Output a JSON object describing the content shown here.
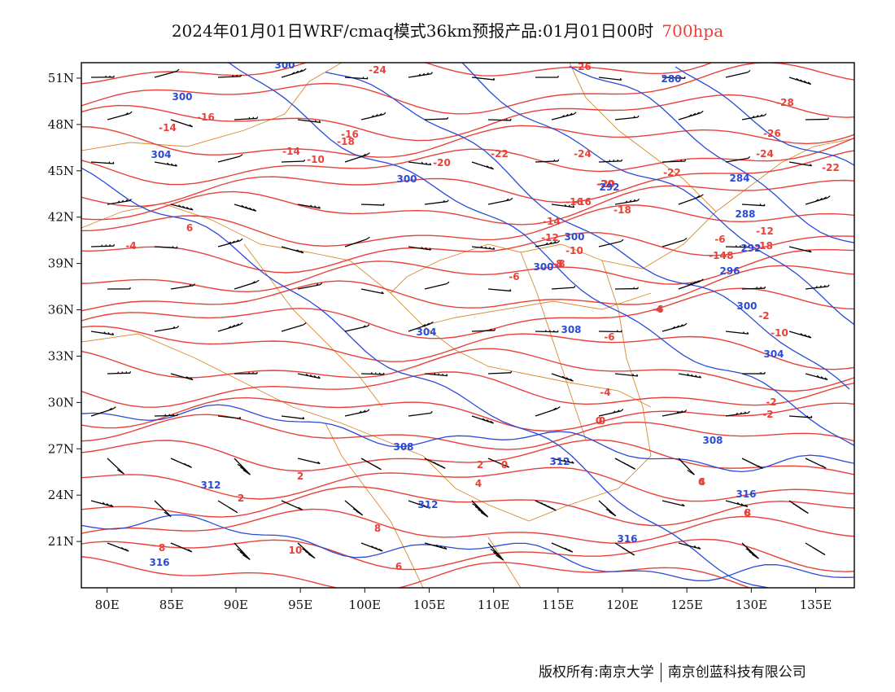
{
  "header": {
    "title": "2024年01月01日WRF/cmaq模式36km预报产品:01月01日00时",
    "level": "700hpa"
  },
  "map": {
    "lon_range": [
      78,
      138
    ],
    "lat_range": [
      18,
      52
    ],
    "x_ticks": [
      "80E",
      "85E",
      "90E",
      "95E",
      "100E",
      "105E",
      "110E",
      "115E",
      "120E",
      "125E",
      "130E",
      "135E"
    ],
    "y_ticks": [
      "51N",
      "48N",
      "45N",
      "42N",
      "39N",
      "36N",
      "33N",
      "30N",
      "27N",
      "24N",
      "21N"
    ],
    "temperature_labels": [
      "-24",
      "-26",
      "-28",
      "-26",
      "-24",
      "-22",
      "-16",
      "-14",
      "-16",
      "-18",
      "-16",
      "-14",
      "-10",
      "-20",
      "-22",
      "-24",
      "-22",
      "-20",
      "-16",
      "-18",
      "-14",
      "-12",
      "-10",
      "-8",
      "-6",
      "-4",
      "-6",
      "-4",
      "-2",
      "0",
      "-2",
      "0",
      "2",
      "2",
      "4",
      "6",
      "8",
      "10",
      "8",
      "6",
      "4",
      "6",
      "-4",
      "-2",
      "-10",
      "-8",
      "-6",
      "-18",
      "-14",
      "-12",
      "-20",
      "-6",
      "-8",
      "0",
      "2",
      "6",
      "8"
    ],
    "height_labels": [
      "300",
      "280",
      "300",
      "304",
      "300",
      "292",
      "284",
      "288",
      "300",
      "296",
      "300",
      "304",
      "308",
      "304",
      "308",
      "312",
      "312",
      "312",
      "316",
      "316",
      "316",
      "308",
      "300",
      "292"
    ],
    "colors": {
      "temperature": "#e8413a",
      "height": "#2a4bd7",
      "border": "#d98a2e",
      "wind": "#000000"
    }
  },
  "footer": {
    "left": "版权所有:南京大学",
    "right": "南京创蓝科技有限公司"
  }
}
